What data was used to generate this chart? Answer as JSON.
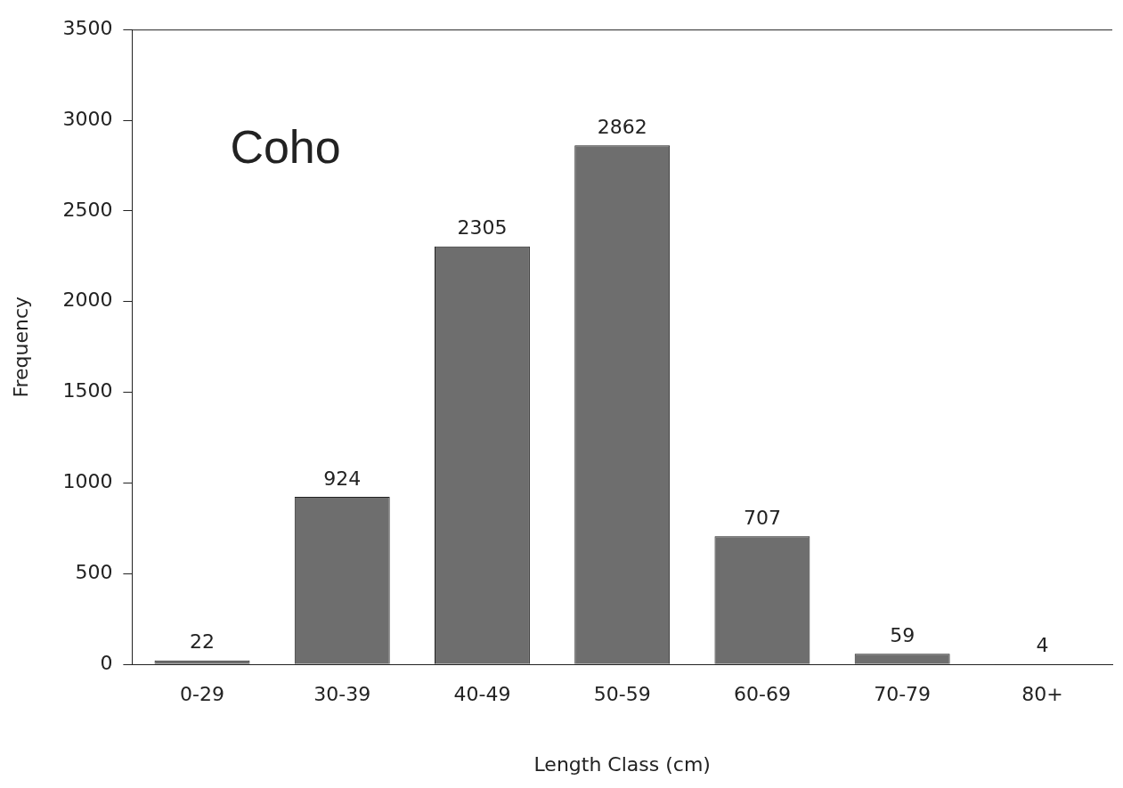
{
  "chart_data": {
    "type": "bar",
    "xlabel": "Length Class (cm)",
    "ylabel": "Frequency",
    "categories": [
      "0-29",
      "30-39",
      "40-49",
      "50-59",
      "60-69",
      "70-79",
      "80+"
    ],
    "values": [
      22,
      924,
      2305,
      2862,
      707,
      59,
      4
    ],
    "color": "#6e6e6e",
    "ylim": [
      0,
      3500
    ],
    "yticks": [
      0,
      500,
      1000,
      1500,
      2000,
      2500,
      3000,
      3500
    ],
    "grid": false,
    "legend": false,
    "data_labels": true,
    "annotations": [
      "Coho"
    ]
  }
}
